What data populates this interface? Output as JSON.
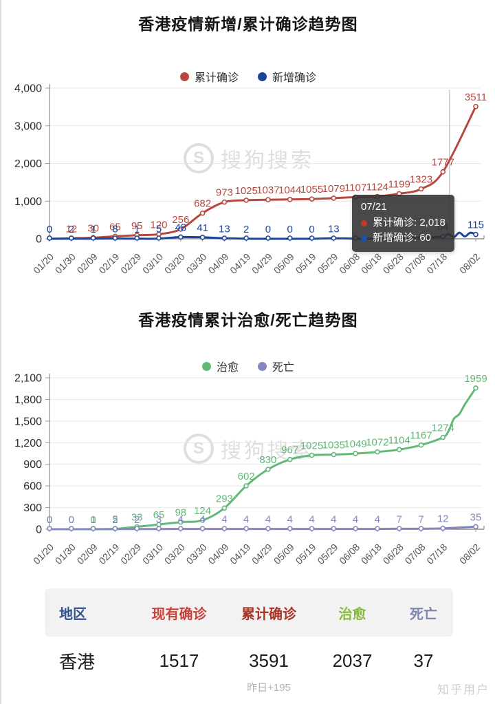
{
  "page": {
    "sogou_logo_letter": "S",
    "sogou_watermark": "搜狗搜索",
    "zhihu_watermark": "知乎用户"
  },
  "chart_data": [
    {
      "type": "line",
      "title": "香港疫情新增/累计确诊趋势图",
      "legend_position": "top",
      "grid": true,
      "ylim": [
        0,
        4000
      ],
      "y_ticks": [
        {
          "value": 4000,
          "label": "4,000"
        },
        {
          "value": 3000,
          "label": "3,000"
        },
        {
          "value": 2000,
          "label": "2,000"
        },
        {
          "value": 1000,
          "label": "1,000"
        },
        {
          "value": 0,
          "label": "0"
        }
      ],
      "categories": [
        "01/20",
        "01/30",
        "02/09",
        "02/19",
        "02/29",
        "03/10",
        "03/20",
        "03/30",
        "04/09",
        "04/19",
        "04/29",
        "05/09",
        "05/19",
        "05/29",
        "06/08",
        "06/18",
        "06/28",
        "07/08",
        "07/18",
        "08/02"
      ],
      "series": [
        {
          "name": "累计确诊",
          "color": "#b8473f",
          "values": [
            0,
            12,
            30,
            65,
            95,
            120,
            256,
            682,
            973,
            1025,
            1037,
            1044,
            1055,
            1079,
            1107,
            1124,
            1199,
            1323,
            1777,
            3511
          ],
          "labels": [
            "0",
            "12",
            "30",
            "65",
            "95",
            "120",
            "256",
            "682",
            "973",
            "1025",
            "1037",
            "1044",
            "1055",
            "1079",
            "1107",
            "1124",
            "1199",
            "1323",
            "1777",
            "3511"
          ]
        },
        {
          "name": "新增确诊",
          "color": "#1a449c",
          "values": [
            0,
            2,
            1,
            8,
            1,
            5,
            48,
            41,
            13,
            2,
            0,
            0,
            0,
            13,
            4,
            6,
            14,
            24,
            64,
            115
          ],
          "labels": [
            "0",
            "2",
            "1",
            "8",
            "1",
            "5",
            "48",
            "41",
            "13",
            "2",
            "0",
            "0",
            "0",
            "13",
            "",
            "",
            "",
            "",
            "64",
            "115"
          ]
        }
      ],
      "tooltip": {
        "date": "07/21",
        "rows": [
          {
            "text": "累计确诊: 2,018",
            "color": "#c0392b"
          },
          {
            "text": "新增确诊: 60",
            "color": "#2050b4"
          }
        ]
      }
    },
    {
      "type": "line",
      "title": "香港疫情累计治愈/死亡趋势图",
      "legend_position": "top",
      "grid": true,
      "ylim": [
        0,
        2100
      ],
      "y_ticks": [
        {
          "value": 2100,
          "label": "2,100"
        },
        {
          "value": 1800,
          "label": "1,800"
        },
        {
          "value": 1500,
          "label": "1,500"
        },
        {
          "value": 1200,
          "label": "1,200"
        },
        {
          "value": 900,
          "label": "900"
        },
        {
          "value": 600,
          "label": "600"
        },
        {
          "value": 300,
          "label": "300"
        },
        {
          "value": 0,
          "label": "0"
        }
      ],
      "categories": [
        "01/20",
        "01/30",
        "02/09",
        "02/19",
        "02/29",
        "03/10",
        "03/20",
        "03/30",
        "04/09",
        "04/19",
        "04/29",
        "05/09",
        "05/19",
        "05/29",
        "06/08",
        "06/18",
        "06/28",
        "07/08",
        "07/18",
        "08/02"
      ],
      "series": [
        {
          "name": "治愈",
          "color": "#61b877",
          "values": [
            0,
            0,
            0,
            5,
            33,
            65,
            98,
            124,
            293,
            602,
            830,
            967,
            1025,
            1035,
            1049,
            1072,
            1104,
            1167,
            1274,
            1959
          ],
          "labels": [
            "0",
            "0",
            "0",
            "5",
            "33",
            "65",
            "98",
            "124",
            "293",
            "602",
            "830",
            "967",
            "1025",
            "1035",
            "1049",
            "1072",
            "1104",
            "1167",
            "1274",
            "1959"
          ]
        },
        {
          "name": "死亡",
          "color": "#8487bd",
          "values": [
            0,
            0,
            1,
            2,
            2,
            3,
            4,
            4,
            4,
            4,
            4,
            4,
            4,
            4,
            4,
            4,
            7,
            7,
            12,
            35
          ],
          "labels": [
            "0",
            "0",
            "1",
            "2",
            "2",
            "3",
            "4",
            "4",
            "4",
            "4",
            "4",
            "4",
            "4",
            "4",
            "4",
            "4",
            "7",
            "7",
            "12",
            "35"
          ]
        }
      ],
      "tooltip": null
    }
  ],
  "table": {
    "headers": [
      {
        "label": "地区",
        "color": "#33518e"
      },
      {
        "label": "现有确诊",
        "color": "#c9413a"
      },
      {
        "label": "累计确诊",
        "color": "#a93226"
      },
      {
        "label": "治愈",
        "color": "#84bb3f"
      },
      {
        "label": "死亡",
        "color": "#8088b0"
      }
    ],
    "row": {
      "region": "香港",
      "existing": "1517",
      "cumulative": "3591",
      "cured": "2037",
      "deaths": "37"
    },
    "note": "昨日+195"
  }
}
